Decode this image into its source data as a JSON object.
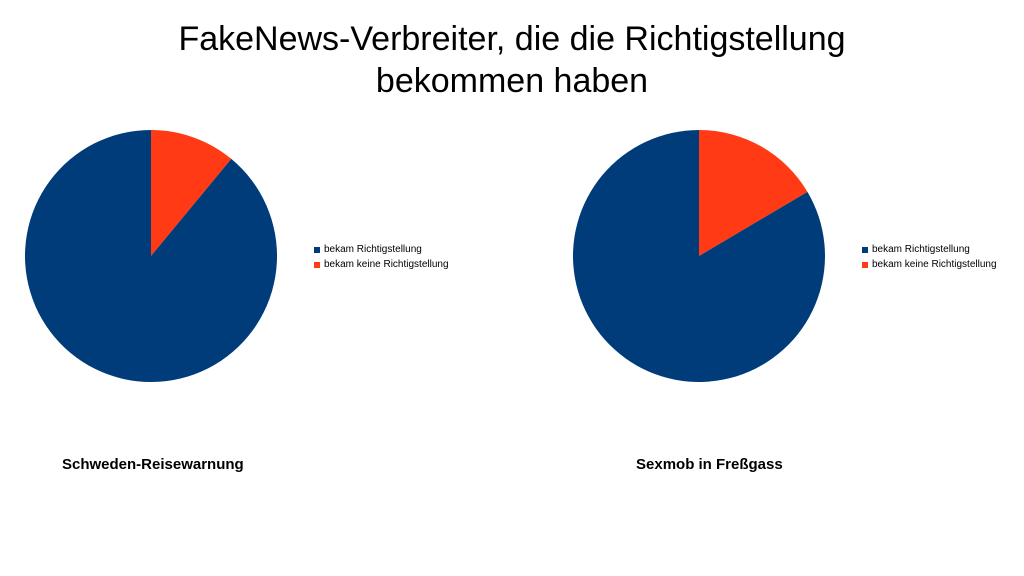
{
  "title": {
    "line1": "FakeNews-Verbreiter, die die Richtigstellung",
    "line2": "bekommen haben"
  },
  "colors": {
    "series_1": "#003C7A",
    "series_2": "#FF3A14"
  },
  "chart_data": [
    {
      "type": "pie",
      "title": "Schweden-Reisewarnung",
      "legend_placement": "right",
      "slices": [
        {
          "label": "bekam Richtigstellung",
          "value": 89
        },
        {
          "label": "bekam keine Richtigstellung",
          "value": 11
        }
      ]
    },
    {
      "type": "pie",
      "title": "Sexmob in Freßgass",
      "legend_placement": "right",
      "slices": [
        {
          "label": "bekam Richtigstellung",
          "value": 83.5
        },
        {
          "label": "bekam keine Richtigstellung",
          "value": 16.5
        }
      ]
    }
  ]
}
